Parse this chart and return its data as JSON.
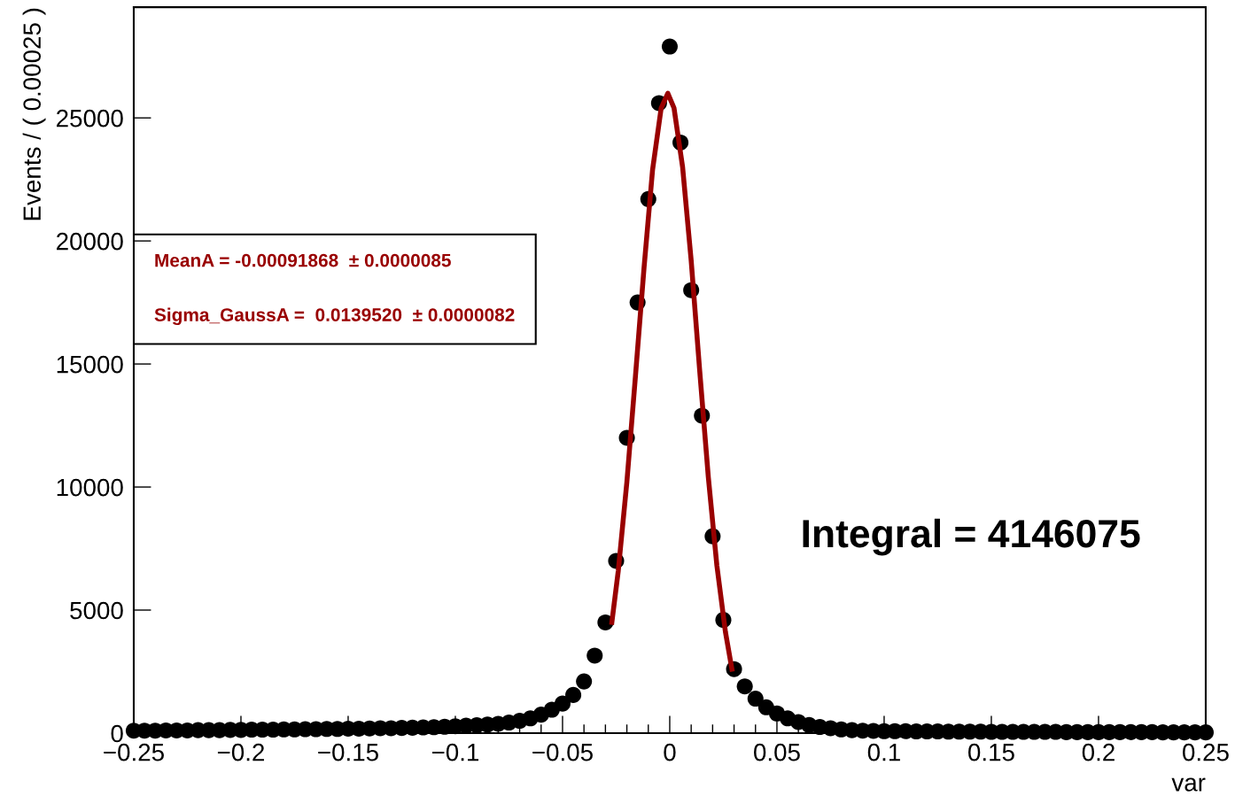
{
  "chart_data": {
    "type": "scatter",
    "xlabel": "var",
    "ylabel": "Events / ( 0.00025 )",
    "xlim": [
      -0.25,
      0.25
    ],
    "ylim": [
      0,
      29500
    ],
    "xticks": [
      {
        "value": -0.25,
        "label": "−0.25"
      },
      {
        "value": -0.2,
        "label": "−0.2"
      },
      {
        "value": -0.15,
        "label": "−0.15"
      },
      {
        "value": -0.1,
        "label": "−0.1"
      },
      {
        "value": -0.05,
        "label": "−0.05"
      },
      0,
      0.05,
      0.1,
      0.15,
      0.2,
      0.25
    ],
    "yticks": [
      0,
      5000,
      10000,
      15000,
      20000,
      25000
    ],
    "grid": false,
    "legend": false,
    "series": [
      {
        "type": "scatter",
        "color": "#000000",
        "marker": "circle",
        "x": [
          -0.25,
          -0.245,
          -0.24,
          -0.235,
          -0.23,
          -0.225,
          -0.22,
          -0.215,
          -0.21,
          -0.205,
          -0.2,
          -0.195,
          -0.19,
          -0.185,
          -0.18,
          -0.175,
          -0.17,
          -0.165,
          -0.16,
          -0.155,
          -0.15,
          -0.145,
          -0.14,
          -0.135,
          -0.13,
          -0.125,
          -0.12,
          -0.115,
          -0.11,
          -0.105,
          -0.1,
          -0.095,
          -0.09,
          -0.085,
          -0.08,
          -0.075,
          -0.07,
          -0.065,
          -0.06,
          -0.055,
          -0.05,
          -0.045,
          -0.04,
          -0.035,
          -0.03,
          -0.025,
          -0.02,
          -0.015,
          -0.01,
          -0.005,
          0,
          0.005,
          0.01,
          0.015,
          0.02,
          0.025,
          0.03,
          0.035,
          0.04,
          0.045,
          0.05,
          0.055,
          0.06,
          0.065,
          0.07,
          0.075,
          0.08,
          0.085,
          0.09,
          0.095,
          0.1,
          0.105,
          0.11,
          0.115,
          0.12,
          0.125,
          0.13,
          0.135,
          0.14,
          0.145,
          0.15,
          0.155,
          0.16,
          0.165,
          0.17,
          0.175,
          0.18,
          0.185,
          0.19,
          0.195,
          0.2,
          0.205,
          0.21,
          0.215,
          0.22,
          0.225,
          0.23,
          0.235,
          0.24,
          0.245,
          0.25
        ],
        "values": [
          100,
          100,
          100,
          110,
          110,
          110,
          120,
          120,
          120,
          130,
          130,
          140,
          140,
          140,
          150,
          150,
          160,
          160,
          170,
          170,
          180,
          180,
          190,
          200,
          200,
          210,
          220,
          230,
          240,
          260,
          280,
          300,
          320,
          350,
          380,
          430,
          500,
          600,
          750,
          950,
          1200,
          1550,
          2100,
          3150,
          4500,
          7000,
          12000,
          17500,
          21700,
          25600,
          27900,
          24000,
          18000,
          12900,
          8000,
          4600,
          2600,
          1900,
          1400,
          1050,
          800,
          600,
          450,
          330,
          250,
          200,
          150,
          120,
          100,
          90,
          80,
          80,
          80,
          70,
          70,
          70,
          60,
          60,
          60,
          60,
          50,
          50,
          50,
          50,
          50,
          50,
          50,
          40,
          40,
          40,
          40,
          40,
          40,
          40,
          40,
          40,
          30,
          30,
          30,
          30,
          30
        ]
      },
      {
        "type": "line",
        "color": "#990000",
        "marker": "none",
        "line_style": "solid",
        "x": [
          -0.027,
          -0.024,
          -0.02,
          -0.016,
          -0.012,
          -0.008,
          -0.004,
          -0.0009,
          0.002,
          0.006,
          0.01,
          0.014,
          0.018,
          0.022,
          0.026,
          0.029
        ],
        "values": [
          4500,
          6600,
          10200,
          14500,
          18900,
          22900,
          25400,
          26000,
          25400,
          23000,
          19200,
          14700,
          10400,
          6800,
          4100,
          2600
        ]
      }
    ],
    "annotations": [
      "MeanA = -0.00091868  ± 0.0000085",
      "Sigma_GaussA =  0.0139520  ± 0.0000082",
      "Integral = 4146075"
    ]
  }
}
